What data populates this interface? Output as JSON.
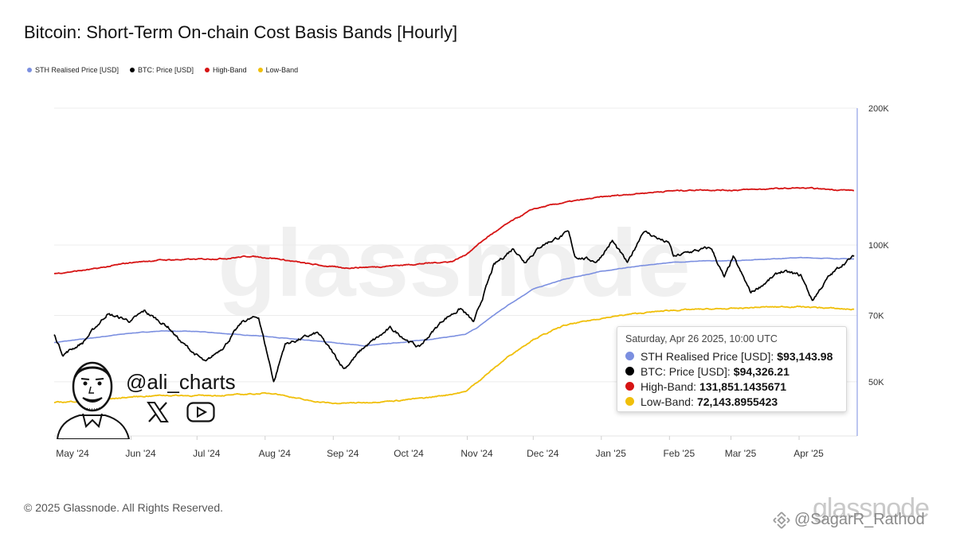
{
  "chart_data": {
    "type": "line",
    "title": "Bitcoin: Short-Term On-chain Cost Basis Bands [Hourly]",
    "yscale": "log",
    "ylim": [
      38000,
      200000
    ],
    "yticks": [
      {
        "value": 200000,
        "label": "200K"
      },
      {
        "value": 100000,
        "label": "100K"
      },
      {
        "value": 70000,
        "label": "70K"
      },
      {
        "value": 50000,
        "label": "50K"
      }
    ],
    "xlim": [
      "2024-04-27",
      "2025-04-26"
    ],
    "xticks": [
      {
        "date": "2024-05-01",
        "label": "May '24"
      },
      {
        "date": "2024-06-01",
        "label": "Jun '24"
      },
      {
        "date": "2024-07-01",
        "label": "Jul '24"
      },
      {
        "date": "2024-08-01",
        "label": "Aug '24"
      },
      {
        "date": "2024-09-01",
        "label": "Sep '24"
      },
      {
        "date": "2024-10-01",
        "label": "Oct '24"
      },
      {
        "date": "2024-11-01",
        "label": "Nov '24"
      },
      {
        "date": "2024-12-01",
        "label": "Dec '24"
      },
      {
        "date": "2025-01-01",
        "label": "Jan '25"
      },
      {
        "date": "2025-02-01",
        "label": "Feb '25"
      },
      {
        "date": "2025-03-01",
        "label": "Mar '25"
      },
      {
        "date": "2025-04-01",
        "label": "Apr '25"
      }
    ],
    "grid": true,
    "legend_position": "top-left",
    "series": [
      {
        "name": "STH Realised Price [USD]",
        "color": "#7b8fe0",
        "points": [
          [
            "2024-04-27",
            61000
          ],
          [
            "2024-05-15",
            62500
          ],
          [
            "2024-06-01",
            64000
          ],
          [
            "2024-06-15",
            64700
          ],
          [
            "2024-07-01",
            64500
          ],
          [
            "2024-07-20",
            63500
          ],
          [
            "2024-08-01",
            63000
          ],
          [
            "2024-08-15",
            62000
          ],
          [
            "2024-09-01",
            61000
          ],
          [
            "2024-09-15",
            60000
          ],
          [
            "2024-10-01",
            61000
          ],
          [
            "2024-10-15",
            62000
          ],
          [
            "2024-10-31",
            63500
          ],
          [
            "2024-11-06",
            66000
          ],
          [
            "2024-11-12",
            69500
          ],
          [
            "2024-11-20",
            74000
          ],
          [
            "2024-12-01",
            80000
          ],
          [
            "2024-12-15",
            84000
          ],
          [
            "2025-01-01",
            87500
          ],
          [
            "2025-01-15",
            89500
          ],
          [
            "2025-02-01",
            91500
          ],
          [
            "2025-02-15",
            92200
          ],
          [
            "2025-03-01",
            92300
          ],
          [
            "2025-03-15",
            93000
          ],
          [
            "2025-04-01",
            93800
          ],
          [
            "2025-04-26",
            93143.98
          ]
        ]
      },
      {
        "name": "BTC: Price [USD]",
        "color": "#000000",
        "points": [
          [
            "2024-04-27",
            63500
          ],
          [
            "2024-05-01",
            57500
          ],
          [
            "2024-05-10",
            61000
          ],
          [
            "2024-05-21",
            70500
          ],
          [
            "2024-06-01",
            68000
          ],
          [
            "2024-06-07",
            71500
          ],
          [
            "2024-06-18",
            66000
          ],
          [
            "2024-06-24",
            61000
          ],
          [
            "2024-07-05",
            55000
          ],
          [
            "2024-07-14",
            60500
          ],
          [
            "2024-07-22",
            68000
          ],
          [
            "2024-07-29",
            69500
          ],
          [
            "2024-08-05",
            50000
          ],
          [
            "2024-08-10",
            60500
          ],
          [
            "2024-08-25",
            64000
          ],
          [
            "2024-09-06",
            53500
          ],
          [
            "2024-09-15",
            59500
          ],
          [
            "2024-09-27",
            65500
          ],
          [
            "2024-10-10",
            59500
          ],
          [
            "2024-10-21",
            68500
          ],
          [
            "2024-10-29",
            72500
          ],
          [
            "2024-11-04",
            67500
          ],
          [
            "2024-11-13",
            90000
          ],
          [
            "2024-11-22",
            98500
          ],
          [
            "2024-11-27",
            92000
          ],
          [
            "2024-12-05",
            100000
          ],
          [
            "2024-12-17",
            106500
          ],
          [
            "2024-12-20",
            94500
          ],
          [
            "2024-12-30",
            92000
          ],
          [
            "2025-01-06",
            102000
          ],
          [
            "2025-01-13",
            91000
          ],
          [
            "2025-01-20",
            107500
          ],
          [
            "2025-02-01",
            100500
          ],
          [
            "2025-02-03",
            94000
          ],
          [
            "2025-02-10",
            96500
          ],
          [
            "2025-02-20",
            98500
          ],
          [
            "2025-02-26",
            84500
          ],
          [
            "2025-03-02",
            94000
          ],
          [
            "2025-03-10",
            78500
          ],
          [
            "2025-03-24",
            87500
          ],
          [
            "2025-04-02",
            85500
          ],
          [
            "2025-04-07",
            75500
          ],
          [
            "2025-04-14",
            84500
          ],
          [
            "2025-04-21",
            91000
          ],
          [
            "2025-04-26",
            94326.21
          ]
        ]
      },
      {
        "name": "High-Band",
        "color": "#d61414",
        "points": [
          [
            "2024-04-27",
            86500
          ],
          [
            "2024-05-15",
            88500
          ],
          [
            "2024-06-01",
            91500
          ],
          [
            "2024-06-15",
            92700
          ],
          [
            "2024-07-01",
            93000
          ],
          [
            "2024-07-15",
            93500
          ],
          [
            "2024-07-25",
            94500
          ],
          [
            "2024-08-05",
            93500
          ],
          [
            "2024-08-20",
            91000
          ],
          [
            "2024-09-05",
            89000
          ],
          [
            "2024-09-20",
            89500
          ],
          [
            "2024-10-05",
            90500
          ],
          [
            "2024-10-25",
            92000
          ],
          [
            "2024-10-31",
            95000
          ],
          [
            "2024-11-10",
            104000
          ],
          [
            "2024-11-20",
            112000
          ],
          [
            "2024-12-01",
            120000
          ],
          [
            "2024-12-15",
            124000
          ],
          [
            "2025-01-01",
            127500
          ],
          [
            "2025-01-15",
            129500
          ],
          [
            "2025-02-01",
            131500
          ],
          [
            "2025-02-15",
            132300
          ],
          [
            "2025-03-01",
            132000
          ],
          [
            "2025-03-15",
            132700
          ],
          [
            "2025-04-01",
            133500
          ],
          [
            "2025-04-26",
            131851.1435671
          ]
        ]
      },
      {
        "name": "Low-Band",
        "color": "#f0bf0a",
        "points": [
          [
            "2024-04-27",
            45000
          ],
          [
            "2024-05-15",
            45500
          ],
          [
            "2024-06-01",
            46300
          ],
          [
            "2024-06-15",
            46700
          ],
          [
            "2024-07-01",
            46600
          ],
          [
            "2024-07-15",
            46700
          ],
          [
            "2024-07-25",
            47000
          ],
          [
            "2024-08-05",
            47200
          ],
          [
            "2024-08-20",
            45500
          ],
          [
            "2024-09-01",
            44800
          ],
          [
            "2024-09-15",
            45000
          ],
          [
            "2024-10-01",
            45500
          ],
          [
            "2024-10-15",
            46200
          ],
          [
            "2024-10-31",
            47500
          ],
          [
            "2024-11-10",
            52000
          ],
          [
            "2024-11-20",
            57000
          ],
          [
            "2024-12-01",
            62000
          ],
          [
            "2024-12-15",
            66500
          ],
          [
            "2025-01-01",
            69000
          ],
          [
            "2025-01-15",
            70500
          ],
          [
            "2025-02-01",
            71800
          ],
          [
            "2025-02-15",
            72200
          ],
          [
            "2025-03-01",
            72400
          ],
          [
            "2025-03-15",
            73000
          ],
          [
            "2025-04-01",
            73200
          ],
          [
            "2025-04-26",
            72143.8955423
          ]
        ]
      }
    ]
  },
  "tooltip": {
    "date": "Saturday, Apr 26 2025, 10:00 UTC",
    "rows": [
      {
        "label": "STH Realised Price [USD]:",
        "value": "$93,143.98",
        "color": "#7b8fe0"
      },
      {
        "label": "BTC: Price [USD]:",
        "value": "$94,326.21",
        "color": "#000000"
      },
      {
        "label": "High-Band:",
        "value": "131,851.1435671",
        "color": "#d61414"
      },
      {
        "label": "Low-Band:",
        "value": "72,143.8955423",
        "color": "#f0bf0a"
      }
    ]
  },
  "watermark": "glassnode",
  "copyright": "© 2025 Glassnode. All Rights Reserved.",
  "author": {
    "handle": "@ali_charts",
    "icons": [
      "x-logo-icon",
      "youtube-icon"
    ]
  },
  "bottom_watermark": {
    "brand": "glassnode",
    "handle": "@SagarR_Rathod",
    "icon": "binance-logo-icon"
  }
}
